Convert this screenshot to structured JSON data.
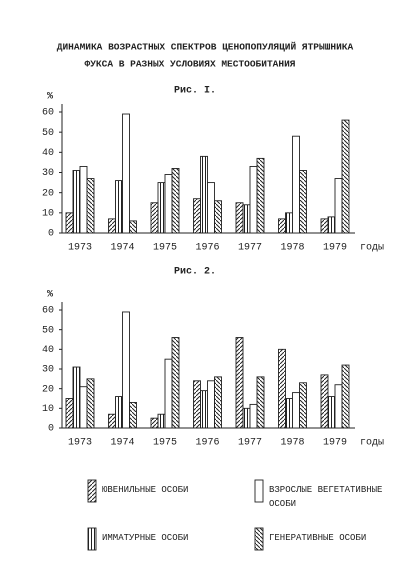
{
  "header": {
    "lines": [
      "ДИНАМИКА ВОЗРАСТНЫХ СПЕКТРОВ ЦЕНОПОПУЛЯЦИЙ ЯТРЫШНИКА",
      "ФУКСА В РАЗНЫХ УСЛОВИЯХ МЕСТООБИТАНИЯ"
    ]
  },
  "chart_data": [
    {
      "type": "bar",
      "title": "Рис. I.",
      "y_label": "%",
      "x_label": "годы",
      "categories": [
        "1973",
        "1974",
        "1975",
        "1976",
        "1977",
        "1978",
        "1979"
      ],
      "ylim": [
        0,
        60
      ],
      "yticks": [
        0,
        10,
        20,
        30,
        40,
        50,
        60
      ],
      "color": "#222",
      "series": [
        {
          "name": "ЮВЕНИЛЬНЫЕ ОСОБИ",
          "pattern": "hatch-forward",
          "values": [
            10,
            7,
            15,
            17,
            15,
            7,
            7
          ]
        },
        {
          "name": "ИММАТУРНЫЕ ОСОБИ",
          "pattern": "vertical",
          "values": [
            31,
            26,
            25,
            38,
            14,
            10,
            8
          ]
        },
        {
          "name": "ВЗРОСЛЫЕ ВЕГЕТАТИВНЫЕ ОСОБИ",
          "pattern": "none",
          "values": [
            33,
            59,
            29,
            25,
            33,
            48,
            27
          ]
        },
        {
          "name": "ГЕНЕРАТИВНЫЕ ОСОБИ",
          "pattern": "hatch-back",
          "values": [
            27,
            6,
            32,
            16,
            37,
            31,
            56
          ]
        }
      ]
    },
    {
      "type": "bar",
      "title": "Рис. 2.",
      "y_label": "%",
      "x_label": "годы",
      "categories": [
        "1973",
        "1974",
        "1975",
        "1976",
        "1977",
        "1978",
        "1979"
      ],
      "ylim": [
        0,
        60
      ],
      "yticks": [
        0,
        10,
        20,
        30,
        40,
        50,
        60
      ],
      "color": "#222",
      "series": [
        {
          "pattern": "hatch-forward",
          "values": [
            15,
            7,
            5,
            24,
            46,
            40,
            27
          ]
        },
        {
          "pattern": "vertical",
          "values": [
            31,
            16,
            7,
            19,
            10,
            15,
            16
          ]
        },
        {
          "pattern": "none",
          "values": [
            21,
            59,
            35,
            24,
            12,
            18,
            22
          ]
        },
        {
          "pattern": "hatch-back",
          "values": [
            25,
            13,
            46,
            26,
            26,
            23,
            32
          ]
        }
      ]
    }
  ]
}
